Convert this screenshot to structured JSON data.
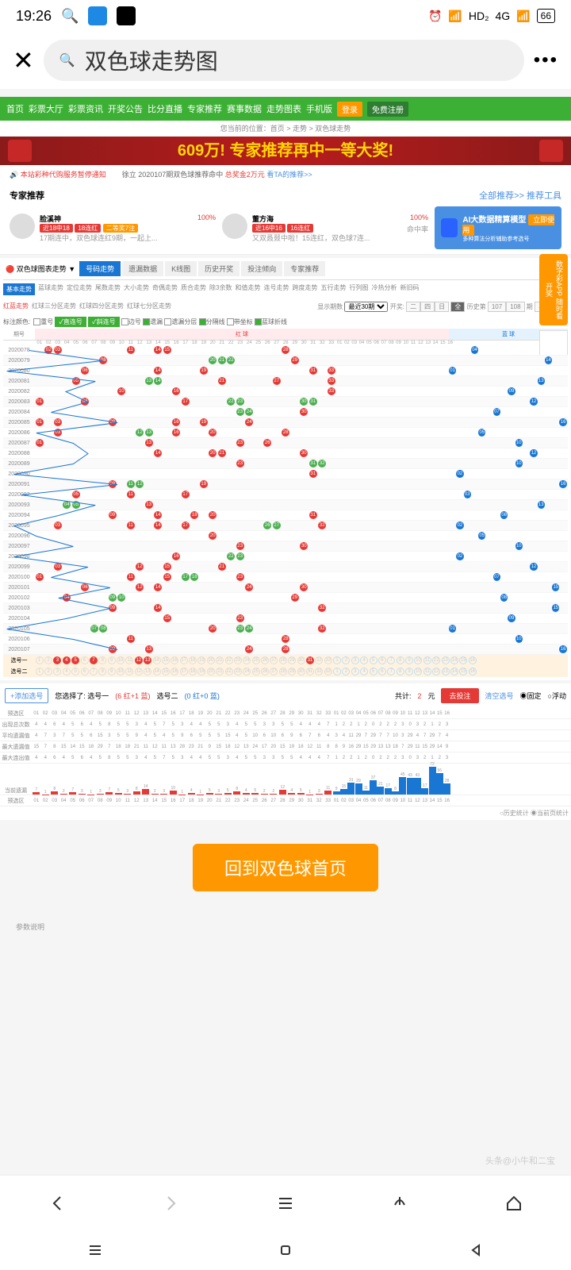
{
  "status": {
    "time": "19:26",
    "hd": "HD₂",
    "net": "4G",
    "battery": "66"
  },
  "search": {
    "text": "双色球走势图"
  },
  "nav": {
    "items": [
      "首页",
      "彩票大厅",
      "彩票资讯",
      "开奖公告",
      "比分直播",
      "专家推荐",
      "赛事数据",
      "走势图表",
      "手机版"
    ],
    "login": "登录",
    "register": "免费注册"
  },
  "breadcrumb": "您当前的位置：首页 > 走势 > 双色球走势",
  "banner": "609万! 专家推荐再中一等大奖!",
  "notice": {
    "n1": "本站彩种代购服务暂停通知",
    "n2": "徐立 2020107期双色球推荐命中",
    "prize": "总奖金2万元",
    "n3": "看TA的推荐>>"
  },
  "expert": {
    "title": "专家推荐",
    "links": "全部推荐>>    推荐工具",
    "e1": {
      "name": "脸溪神",
      "pct": "100%",
      "t1": "近18中18",
      "t2": "18连红",
      "t3": "二等奖7注",
      "desc": "17期连中，双色球连红9期，一起上..."
    },
    "e2": {
      "name": "董方海",
      "pct": "100%",
      "sub": "命中率",
      "t1": "近16中16",
      "t2": "16连红",
      "desc": "又双叒叕中啦！15连红，双色球7连..."
    },
    "ai": {
      "title": "AI大数据精算模型",
      "sub": "多种算法分析辅助参考选号",
      "btn": "立即使用"
    }
  },
  "sideAd": "数字彩APP\n随时看开奖",
  "trend": {
    "selector": "双色球图表走势",
    "tabs": [
      "号码走势",
      "遗漏数据",
      "K线图",
      "历史开奖",
      "投注倾向",
      "专家推荐"
    ],
    "subtabs": [
      "基本走势",
      "蓝球走势",
      "定位走势",
      "尾数走势",
      "大小走势",
      "奇偶走势",
      "质合走势",
      "除3余数",
      "和值走势",
      "连号走势",
      "跨度走势",
      "五行走势",
      "行列图",
      "冷热分析",
      "新旧码"
    ],
    "subtabs2": [
      "红蓝走势",
      "红球三分区走势",
      "红球四分区走势",
      "红球七分区走势"
    ],
    "periodLabel": "显示期数",
    "periodSel": "最近30期",
    "kj": "开奖:",
    "hist": "历史第",
    "histBtns": [
      "107",
      "108"
    ],
    "qi": "期",
    "export": "导出数据",
    "markLabel": "标注颜色:",
    "marks": [
      "重号",
      "直连号",
      "斜连号",
      "边号",
      "遗漏",
      "遗漏分层",
      "分隔线",
      "带坐标",
      "蓝球折线"
    ],
    "periodCol": "期号",
    "redH": "红 球",
    "blueH": "蓝 球"
  },
  "periods": [
    "2020078",
    "2020079",
    "2020080",
    "2020081",
    "2020082",
    "2020083",
    "2020084",
    "2020085",
    "2020086",
    "2020087",
    "2020088",
    "2020089",
    "2020090",
    "2020091",
    "2020092",
    "2020093",
    "2020094",
    "2020095",
    "2020096",
    "2020097",
    "2020098",
    "2020099",
    "2020100",
    "2020101",
    "2020102",
    "2020103",
    "2020104",
    "2020105",
    "2020106",
    "2020107"
  ],
  "redBalls": [
    [
      [
        2,
        "r"
      ],
      [
        3,
        "r"
      ],
      [
        11,
        "r"
      ],
      [
        14,
        "r"
      ],
      [
        15,
        "r"
      ],
      [
        28,
        "r"
      ]
    ],
    [
      [
        8,
        "r"
      ],
      [
        20,
        "g"
      ],
      [
        21,
        "g"
      ],
      [
        22,
        "g"
      ],
      [
        29,
        "r"
      ]
    ],
    [
      [
        6,
        "r"
      ],
      [
        14,
        "r"
      ],
      [
        19,
        "r"
      ],
      [
        31,
        "r"
      ],
      [
        33,
        "r"
      ]
    ],
    [
      [
        5,
        "r"
      ],
      [
        13,
        "g"
      ],
      [
        14,
        "g"
      ],
      [
        21,
        "r"
      ],
      [
        27,
        "r"
      ],
      [
        33,
        "r"
      ]
    ],
    [
      [
        10,
        "r"
      ],
      [
        16,
        "r"
      ],
      [
        33,
        "r"
      ]
    ],
    [
      [
        1,
        "r"
      ],
      [
        6,
        "r"
      ],
      [
        17,
        "r"
      ],
      [
        22,
        "g"
      ],
      [
        23,
        "g"
      ],
      [
        30,
        "g"
      ],
      [
        31,
        "g"
      ]
    ],
    [
      [
        23,
        "g"
      ],
      [
        24,
        "g"
      ],
      [
        30,
        "r"
      ]
    ],
    [
      [
        1,
        "r"
      ],
      [
        3,
        "r"
      ],
      [
        9,
        "r"
      ],
      [
        16,
        "r"
      ],
      [
        19,
        "r"
      ],
      [
        24,
        "r"
      ]
    ],
    [
      [
        3,
        "r"
      ],
      [
        12,
        "g"
      ],
      [
        13,
        "g"
      ],
      [
        16,
        "r"
      ],
      [
        20,
        "r"
      ],
      [
        28,
        "r"
      ]
    ],
    [
      [
        1,
        "r"
      ],
      [
        13,
        "r"
      ],
      [
        23,
        "r"
      ],
      [
        26,
        "r"
      ]
    ],
    [
      [
        14,
        "r"
      ],
      [
        20,
        "r"
      ],
      [
        21,
        "r"
      ],
      [
        30,
        "r"
      ]
    ],
    [
      [
        23,
        "r"
      ],
      [
        31,
        "g"
      ],
      [
        32,
        "g"
      ]
    ],
    [
      [
        31,
        "r"
      ]
    ],
    [
      [
        9,
        "r"
      ],
      [
        11,
        "g"
      ],
      [
        12,
        "g"
      ],
      [
        19,
        "r"
      ]
    ],
    [
      [
        5,
        "r"
      ],
      [
        11,
        "r"
      ],
      [
        17,
        "r"
      ]
    ],
    [
      [
        4,
        "g"
      ],
      [
        5,
        "g"
      ],
      [
        13,
        "r"
      ]
    ],
    [
      [
        9,
        "r"
      ],
      [
        14,
        "r"
      ],
      [
        18,
        "r"
      ],
      [
        20,
        "r"
      ],
      [
        31,
        "r"
      ]
    ],
    [
      [
        3,
        "r"
      ],
      [
        11,
        "r"
      ],
      [
        14,
        "r"
      ],
      [
        17,
        "r"
      ],
      [
        26,
        "g"
      ],
      [
        27,
        "g"
      ],
      [
        32,
        "r"
      ]
    ],
    [
      [
        20,
        "r"
      ]
    ],
    [
      [
        23,
        "r"
      ],
      [
        30,
        "r"
      ]
    ],
    [
      [
        16,
        "r"
      ],
      [
        22,
        "g"
      ],
      [
        23,
        "g"
      ]
    ],
    [
      [
        3,
        "r"
      ],
      [
        12,
        "r"
      ],
      [
        15,
        "r"
      ],
      [
        21,
        "r"
      ]
    ],
    [
      [
        1,
        "r"
      ],
      [
        11,
        "r"
      ],
      [
        15,
        "r"
      ],
      [
        17,
        "g"
      ],
      [
        18,
        "g"
      ],
      [
        23,
        "r"
      ]
    ],
    [
      [
        6,
        "r"
      ],
      [
        12,
        "r"
      ],
      [
        14,
        "r"
      ],
      [
        24,
        "r"
      ],
      [
        30,
        "r"
      ]
    ],
    [
      [
        4,
        "r"
      ],
      [
        9,
        "g"
      ],
      [
        10,
        "g"
      ],
      [
        29,
        "r"
      ]
    ],
    [
      [
        9,
        "r"
      ],
      [
        14,
        "r"
      ],
      [
        32,
        "r"
      ]
    ],
    [
      [
        15,
        "r"
      ],
      [
        23,
        "r"
      ]
    ],
    [
      [
        7,
        "g"
      ],
      [
        8,
        "g"
      ],
      [
        20,
        "r"
      ],
      [
        23,
        "g"
      ],
      [
        24,
        "g"
      ],
      [
        32,
        "r"
      ]
    ],
    [
      [
        11,
        "r"
      ],
      [
        28,
        "r"
      ]
    ],
    [
      [
        9,
        "r"
      ],
      [
        13,
        "r"
      ],
      [
        24,
        "r"
      ],
      [
        28,
        "r"
      ]
    ]
  ],
  "blueBalls": [
    4,
    14,
    1,
    13,
    9,
    12,
    7,
    16,
    5,
    10,
    12,
    10,
    2,
    16,
    3,
    13,
    8,
    2,
    5,
    10,
    2,
    12,
    7,
    15,
    8,
    15,
    9,
    1,
    10,
    16
  ],
  "select": {
    "row1": "选号一",
    "row2": "选号二",
    "picked": [
      3,
      4,
      5,
      7,
      12,
      13,
      31
    ]
  },
  "bet": {
    "add": "+添加选号",
    "desc": "您选择了: 选号一",
    "r": "(6 红+1 蓝)",
    "d2": "选号二",
    "b": "(0 红+0 蓝)",
    "total": "共计:",
    "cnt": "2",
    "yuan": "元",
    "go": "去投注",
    "clear": "清空选号",
    "fix": "固定",
    "float": "浮动"
  },
  "stats": {
    "labels": [
      "预选区",
      "出现总次数",
      "平均遗漏值",
      "最大遗漏值",
      "最大连出值",
      "当前遗漏",
      "预选区"
    ],
    "histNote": "历史统计  当前页统计",
    "row1": [
      4,
      4,
      6,
      4,
      5,
      6,
      4,
      5,
      8,
      5,
      5,
      3,
      4,
      5,
      7,
      5,
      3,
      4,
      4,
      5,
      5,
      3,
      4,
      5,
      5,
      3,
      3,
      5,
      5,
      4,
      4,
      4,
      7
    ],
    "row2": [
      4,
      7,
      3,
      7,
      5,
      5,
      6,
      15,
      3,
      5,
      5,
      9,
      4,
      5,
      4,
      5,
      9,
      6,
      5,
      5,
      5,
      15,
      4,
      5,
      10,
      6,
      10,
      6,
      9,
      6,
      7,
      6,
      4
    ],
    "row3": [
      15,
      7,
      8,
      15,
      14,
      15,
      18,
      29,
      7,
      18,
      18,
      21,
      11,
      12,
      11,
      13,
      28,
      23,
      21,
      9,
      15,
      18,
      12,
      13,
      24,
      17,
      20,
      15,
      19,
      18,
      12,
      11,
      8
    ],
    "blue1": [
      1,
      2,
      2,
      1,
      2,
      0,
      2,
      2,
      2,
      3,
      0,
      3,
      2,
      1,
      2,
      3
    ],
    "blue2": [
      3,
      4,
      11,
      29,
      7,
      29,
      7,
      7,
      10,
      3,
      29,
      4,
      7,
      29,
      7,
      4
    ],
    "blue3": [
      8,
      9,
      16,
      29,
      15,
      29,
      13,
      13,
      18,
      7,
      29,
      11,
      15,
      29,
      14,
      9
    ],
    "bars": [
      7,
      1,
      8,
      2,
      7,
      3,
      1,
      3,
      7,
      5,
      3,
      8,
      14,
      2,
      3,
      10,
      1,
      4,
      1,
      5,
      3,
      5,
      8,
      4,
      5,
      2,
      2,
      12,
      4,
      5,
      1,
      3,
      11,
      9,
      15,
      31,
      29,
      11,
      37,
      21,
      17,
      8,
      45,
      43,
      43,
      17,
      72,
      56,
      28
    ]
  },
  "home": "回到双色球首页",
  "params": "参数说明",
  "watermark": "头条@小牛和二宝",
  "colors": {
    "red": "#e53935",
    "green": "#4caf50",
    "blue": "#1976d2",
    "orange": "#ff9800",
    "navGreen": "#3cb034"
  }
}
